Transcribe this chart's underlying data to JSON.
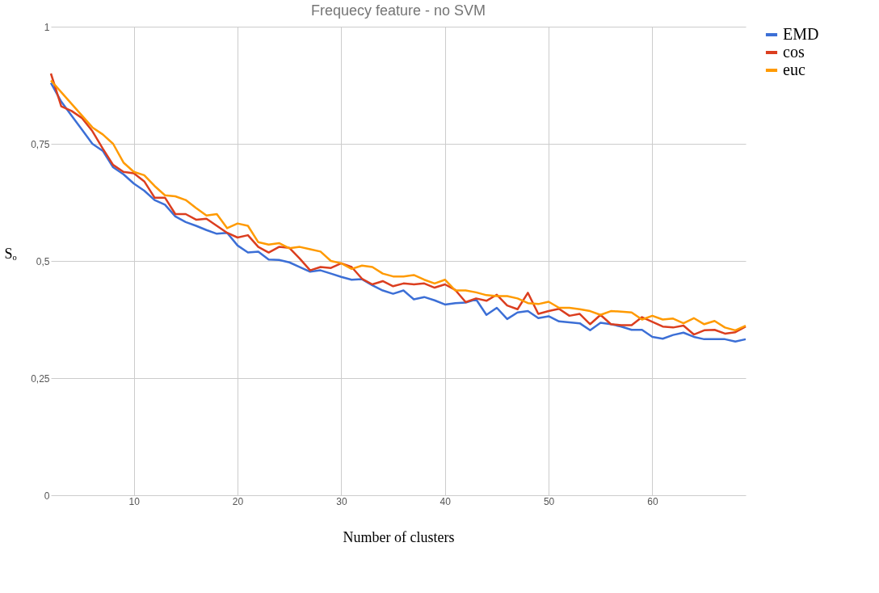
{
  "chart_data": {
    "type": "line",
    "title": "Frequecy feature - no SVM",
    "xlabel": "Number of clusters",
    "ylabel": "Sₒ",
    "x": [
      2,
      3,
      4,
      5,
      6,
      7,
      8,
      9,
      10,
      11,
      12,
      13,
      14,
      15,
      16,
      17,
      18,
      19,
      20,
      21,
      22,
      23,
      24,
      25,
      26,
      27,
      28,
      29,
      30,
      31,
      32,
      33,
      34,
      35,
      36,
      37,
      38,
      39,
      40,
      41,
      42,
      43,
      44,
      45,
      46,
      47,
      48,
      49,
      50,
      51,
      52,
      53,
      54,
      55,
      56,
      57,
      58,
      59,
      60,
      61,
      62,
      63,
      64,
      65,
      66,
      67,
      68,
      69
    ],
    "series": [
      {
        "name": "EMD",
        "color": "#3c6fd6",
        "values": [
          0.88,
          0.84,
          0.81,
          0.78,
          0.75,
          0.735,
          0.7,
          0.685,
          0.665,
          0.65,
          0.63,
          0.62,
          0.595,
          0.583,
          0.575,
          0.566,
          0.558,
          0.56,
          0.533,
          0.518,
          0.52,
          0.503,
          0.502,
          0.497,
          0.487,
          0.477,
          0.48,
          0.473,
          0.466,
          0.46,
          0.461,
          0.448,
          0.437,
          0.43,
          0.437,
          0.418,
          0.423,
          0.416,
          0.407,
          0.41,
          0.411,
          0.418,
          0.385,
          0.4,
          0.376,
          0.39,
          0.393,
          0.378,
          0.382,
          0.371,
          0.369,
          0.367,
          0.352,
          0.368,
          0.365,
          0.36,
          0.353,
          0.353,
          0.338,
          0.334,
          0.342,
          0.347,
          0.338,
          0.333,
          0.333,
          0.333,
          0.328,
          0.333
        ]
      },
      {
        "name": "cos",
        "color": "#db3e1f",
        "values": [
          0.9,
          0.83,
          0.82,
          0.805,
          0.777,
          0.74,
          0.705,
          0.69,
          0.687,
          0.67,
          0.635,
          0.635,
          0.6,
          0.6,
          0.588,
          0.59,
          0.575,
          0.56,
          0.55,
          0.555,
          0.53,
          0.518,
          0.53,
          0.528,
          0.505,
          0.48,
          0.487,
          0.485,
          0.495,
          0.487,
          0.462,
          0.45,
          0.457,
          0.446,
          0.452,
          0.45,
          0.452,
          0.443,
          0.45,
          0.438,
          0.412,
          0.42,
          0.415,
          0.428,
          0.405,
          0.397,
          0.432,
          0.387,
          0.393,
          0.398,
          0.383,
          0.387,
          0.365,
          0.385,
          0.365,
          0.363,
          0.363,
          0.38,
          0.37,
          0.36,
          0.358,
          0.362,
          0.343,
          0.352,
          0.353,
          0.345,
          0.348,
          0.36
        ]
      },
      {
        "name": "euc",
        "color": "#ff9a00",
        "values": [
          0.885,
          0.86,
          0.835,
          0.81,
          0.785,
          0.77,
          0.75,
          0.71,
          0.69,
          0.683,
          0.66,
          0.64,
          0.638,
          0.63,
          0.613,
          0.597,
          0.6,
          0.57,
          0.58,
          0.575,
          0.54,
          0.535,
          0.538,
          0.527,
          0.53,
          0.525,
          0.52,
          0.5,
          0.495,
          0.483,
          0.49,
          0.487,
          0.473,
          0.467,
          0.467,
          0.47,
          0.46,
          0.452,
          0.46,
          0.437,
          0.437,
          0.433,
          0.427,
          0.425,
          0.425,
          0.42,
          0.41,
          0.408,
          0.413,
          0.4,
          0.4,
          0.397,
          0.393,
          0.385,
          0.393,
          0.392,
          0.39,
          0.375,
          0.383,
          0.375,
          0.377,
          0.367,
          0.378,
          0.365,
          0.372,
          0.358,
          0.352,
          0.362
        ]
      }
    ],
    "xlim": [
      2,
      69
    ],
    "xticks": [
      10,
      20,
      30,
      40,
      50,
      60
    ],
    "ylim": [
      0,
      1
    ],
    "yticks": [
      {
        "value": 0,
        "label": "0"
      },
      {
        "value": 0.25,
        "label": "0,25"
      },
      {
        "value": 0.5,
        "label": "0,5"
      },
      {
        "value": 0.75,
        "label": "0,75"
      },
      {
        "value": 1,
        "label": "1"
      }
    ],
    "grid": true,
    "legend": "top right",
    "marker": "none",
    "line_style": "solid"
  }
}
